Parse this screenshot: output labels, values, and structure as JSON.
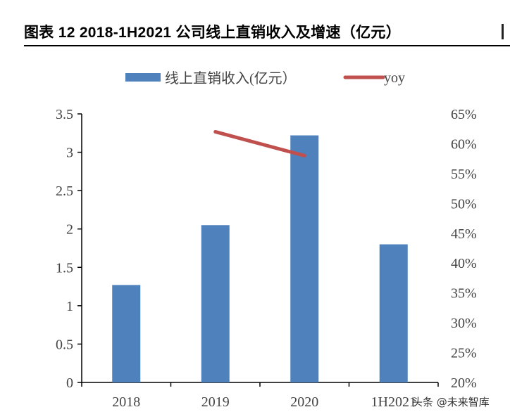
{
  "header": {
    "title": "图表 12 2018-1H2021 公司线上直销收入及增速（亿元）"
  },
  "legend": {
    "bar_label": "线上直销收入(亿元）",
    "line_label": "yoy"
  },
  "watermark": "头条 @未来智库",
  "colors": {
    "bar": "#4F81BD",
    "line": "#C0504D",
    "axis": "#000000",
    "text": "#444444"
  },
  "chart_data": {
    "type": "bar",
    "title": "2018-1H2021 公司线上直销收入及增速（亿元）",
    "categories": [
      "2018",
      "2019",
      "2020",
      "1H2021"
    ],
    "series": [
      {
        "name": "线上直销收入(亿元）",
        "type": "bar",
        "axis": "left",
        "values": [
          1.27,
          2.05,
          3.22,
          1.8
        ]
      },
      {
        "name": "yoy",
        "type": "line",
        "axis": "right",
        "values": [
          null,
          0.62,
          0.58,
          null
        ]
      }
    ],
    "xlabel": "",
    "ylabel": "",
    "ylim": [
      0,
      3.5
    ],
    "y2lim": [
      0.2,
      0.65
    ],
    "left_ticks": [
      "0",
      "0.5",
      "1",
      "1.5",
      "2",
      "2.5",
      "3",
      "3.5"
    ],
    "right_ticks": [
      "20%",
      "25%",
      "30%",
      "35%",
      "40%",
      "45%",
      "50%",
      "55%",
      "60%",
      "65%"
    ],
    "grid": false,
    "legend_position": "top"
  }
}
